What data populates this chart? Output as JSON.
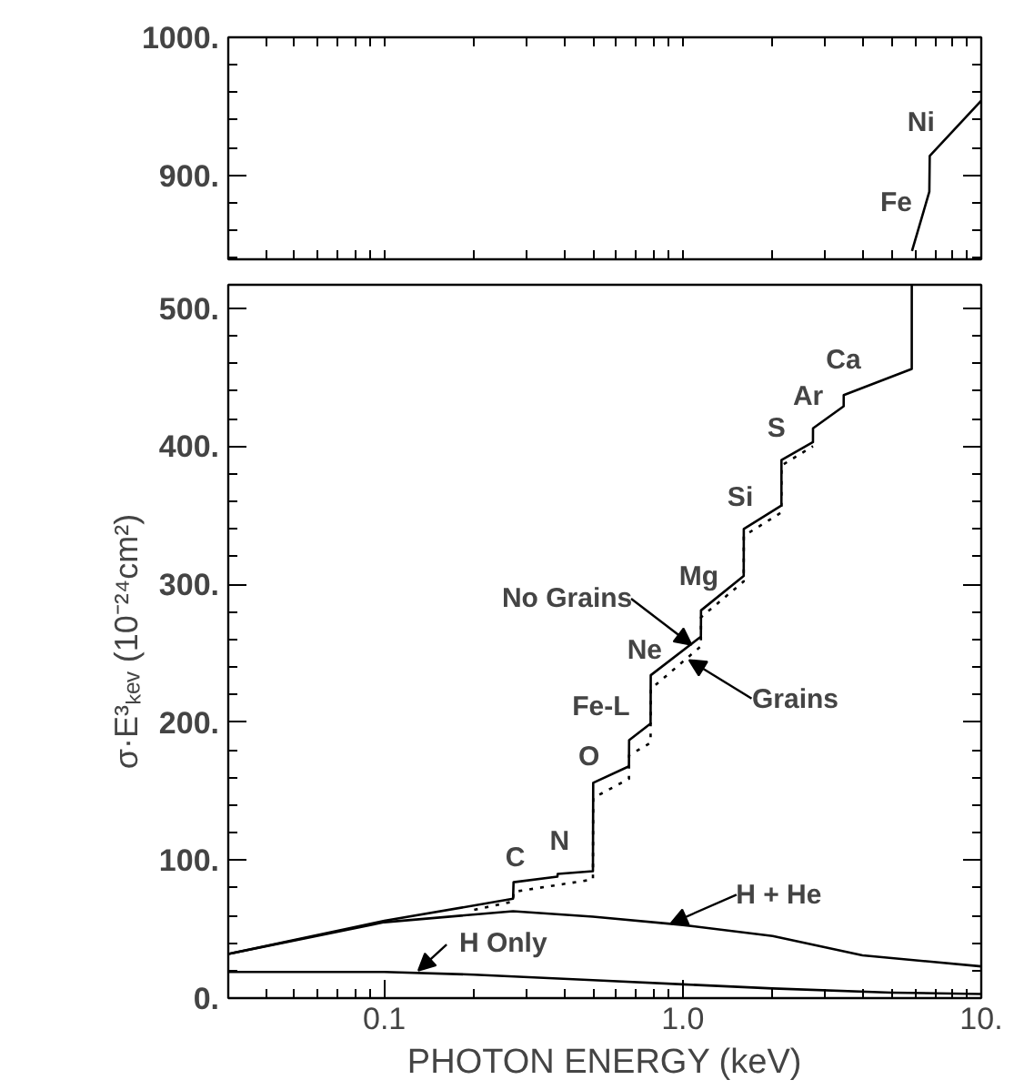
{
  "chart_data": [
    {
      "type": "line",
      "xlim": [
        0.03,
        10
      ],
      "ylim": [
        839,
        1000
      ],
      "log": "x",
      "tick_labels": "y",
      "grid": false,
      "yticks": [
        {
          "value": 900,
          "label": "900."
        },
        {
          "value": 1000,
          "label": "1000."
        }
      ],
      "series": [
        {
          "color": "#000000",
          "line_style": "solid",
          "x": [
            5.86,
            6.7,
            6.72,
            10
          ],
          "values": [
            845,
            888,
            914,
            954
          ]
        }
      ],
      "annotations": [
        "Fe",
        "Ni"
      ]
    },
    {
      "type": "line",
      "xlim": [
        0.03,
        10
      ],
      "ylim": [
        0,
        517
      ],
      "log": "x",
      "grid": false,
      "xlabel": "PHOTON ENERGY (keV)",
      "ylabel": "σ·E³ₖₑᵥ (10⁻²⁴cm²)",
      "xticks": [
        {
          "value": 0.1,
          "label": "0.1"
        },
        {
          "value": 1,
          "label": "1.0"
        },
        {
          "value": 10,
          "label": "10."
        }
      ],
      "yticks": [
        {
          "value": 0,
          "label": "0."
        },
        {
          "value": 100,
          "label": "100."
        },
        {
          "value": 200,
          "label": "200."
        },
        {
          "value": 300,
          "label": "300."
        },
        {
          "value": 400,
          "label": "400."
        },
        {
          "value": 500,
          "label": "500."
        }
      ],
      "series": [
        {
          "color": "#000000",
          "line_style": "solid",
          "x": [
            0.03,
            0.1,
            0.27,
            0.271,
            0.38,
            0.381,
            0.5,
            0.501,
            0.66,
            0.661,
            0.78,
            0.781,
            1.15,
            1.151,
            1.6,
            1.601,
            2.14,
            2.141,
            2.73,
            2.731,
            3.46,
            3.461,
            5.85,
            5.851
          ],
          "values": [
            32,
            56,
            72,
            84,
            88,
            90,
            92,
            156,
            168,
            187,
            199,
            234,
            262,
            281,
            306,
            340,
            357,
            390,
            403,
            413,
            429,
            437,
            456,
            517
          ]
        },
        {
          "color": "#000000",
          "line_style": "dotted",
          "x": [
            0.2,
            0.27,
            0.271,
            0.5,
            0.501,
            0.66,
            0.661,
            0.78,
            0.781,
            1.15,
            1.151,
            1.6,
            1.601,
            2.14,
            2.141,
            2.73
          ],
          "values": [
            64,
            70,
            77,
            86,
            145,
            159,
            176,
            185,
            224,
            255,
            276,
            302,
            335,
            352,
            386,
            400
          ]
        },
        {
          "color": "#000000",
          "line_style": "solid",
          "x": [
            0.03,
            0.1,
            0.27,
            0.5,
            1.0,
            2.0,
            4.0,
            10
          ],
          "values": [
            32,
            55,
            63,
            59,
            53,
            45,
            31,
            23
          ]
        },
        {
          "color": "#000000",
          "line_style": "solid",
          "x": [
            0.03,
            0.1,
            0.2,
            0.5,
            1.0,
            2.0,
            5.0,
            10
          ],
          "values": [
            19,
            19,
            17,
            13,
            10,
            7,
            4,
            3
          ]
        }
      ],
      "annotations": [
        "C",
        "N",
        "O",
        "Fe-L",
        "Ne",
        "Mg",
        "Si",
        "S",
        "Ar",
        "Ca",
        {
          "text": "No Grains",
          "x": 1.07,
          "y": 256
        },
        {
          "text": "Grains",
          "x": 1.05,
          "y": 245
        },
        {
          "text": "H + He",
          "x": 0.91,
          "y": 54
        },
        {
          "text": "H Only",
          "x": 0.13,
          "y": 20
        }
      ]
    }
  ]
}
